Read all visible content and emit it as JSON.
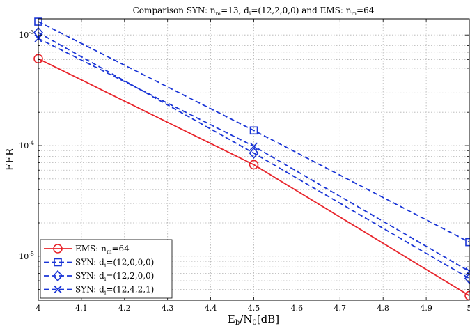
{
  "chart_data": {
    "type": "line",
    "title": {
      "pre": "Comparison SYN: n",
      "sub1": "m",
      "mid": "=13, d",
      "sub2": "i",
      "post": "=(12,2,0,0) and EMS: n",
      "sub3": "m",
      "end": "=64"
    },
    "xlabel": {
      "a": "E",
      "asub": "b",
      "b": "/N",
      "bsub": "0",
      "c": "[dB]"
    },
    "ylabel": "FER",
    "x_ticks": [
      "4",
      "4.1",
      "4.2",
      "4.3",
      "4.4",
      "4.5",
      "4.6",
      "4.7",
      "4.8",
      "4.9",
      "5"
    ],
    "y_ticks": [
      {
        "base": "10",
        "exp": "-3",
        "value": 0.001
      },
      {
        "base": "10",
        "exp": "-4",
        "value": 0.0001
      },
      {
        "base": "10",
        "exp": "-5",
        "value": 1e-05
      }
    ],
    "xlim": [
      4,
      5
    ],
    "ylim": [
      4e-06,
      0.0014
    ],
    "yscale": "log",
    "grid": true,
    "legend_position": "bottom-left",
    "series": [
      {
        "legend_pre": "EMS: n",
        "legend_sub": "m",
        "legend_post": "=64",
        "color": "#e8232a",
        "dash": "solid",
        "marker": "circle",
        "x": [
          4,
          4.5,
          5
        ],
        "y": [
          0.00061,
          6.72e-05,
          4.4e-06
        ]
      },
      {
        "legend_pre": "SYN: d",
        "legend_sub": "i",
        "legend_post": "=(12,0,0,0)",
        "color": "#1a35d6",
        "dash": "dashed",
        "marker": "square",
        "x": [
          4,
          4.5,
          5
        ],
        "y": [
          0.00132,
          0.000137,
          1.34e-05
        ]
      },
      {
        "legend_pre": "SYN: d",
        "legend_sub": "i",
        "legend_post": "=(12,2,0,0)",
        "color": "#1a35d6",
        "dash": "dashed",
        "marker": "diamond",
        "x": [
          4,
          4.5,
          5
        ],
        "y": [
          0.00105,
          8.55e-05,
          6.3e-06
        ]
      },
      {
        "legend_pre": "SYN: d",
        "legend_sub": "i",
        "legend_post": "=(12,4,2,1)",
        "color": "#1a35d6",
        "dash": "dashed",
        "marker": "x",
        "x": [
          4,
          4.5,
          5
        ],
        "y": [
          0.00093,
          9.85e-05,
          7.3e-06
        ]
      }
    ]
  }
}
